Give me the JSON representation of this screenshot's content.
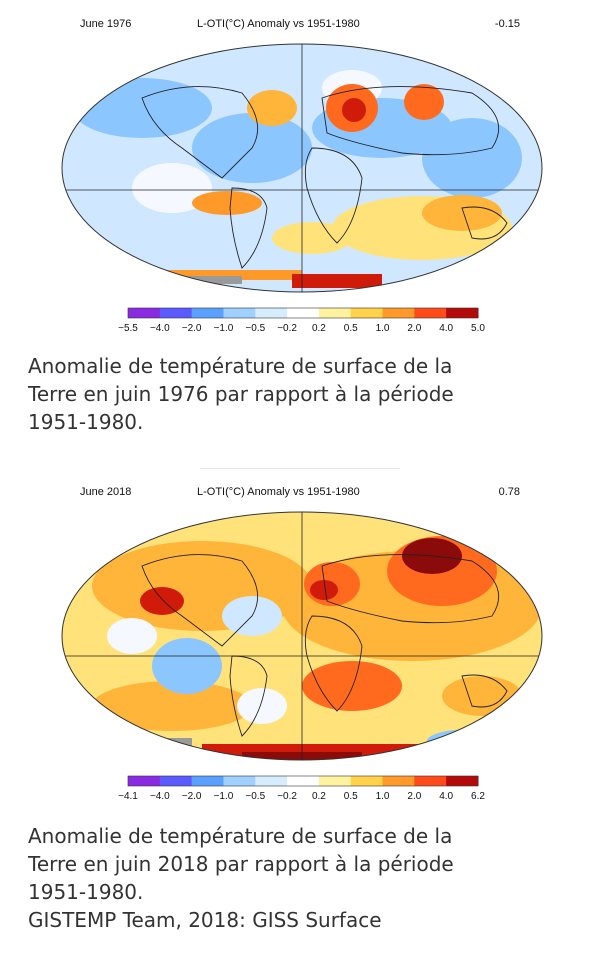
{
  "panels": [
    {
      "date": "June 1976",
      "title": "L-OTI(°C) Anomaly vs 1951-1980",
      "global_mean": "-0.15",
      "colorbar_ticks": [
        "−5.5",
        "−4.0",
        "−2.0",
        "−1.0",
        "−0.5",
        "−0.2",
        "0.2",
        "0.5",
        "1.0",
        "2.0",
        "4.0",
        "5.0"
      ],
      "caption": [
        "Anomalie de température de surface de la",
        "Terre en juin 1976 par rapport à la période",
        "1951-1980."
      ]
    },
    {
      "date": "June 2018",
      "title": "L-OTI(°C) Anomaly vs 1951-1980",
      "global_mean": "0.78",
      "colorbar_ticks": [
        "−4.1",
        "−4.0",
        "−2.0",
        "−1.0",
        "−0.5",
        "−0.2",
        "0.2",
        "0.5",
        "1.0",
        "2.0",
        "4.0",
        "6.2"
      ],
      "caption": [
        "Anomalie de température de surface de la",
        "Terre en juin 2018 par rapport à la période",
        "1951-1980.",
        "GISTEMP Team, 2018: GISS Surface"
      ]
    }
  ],
  "colorbar_colors": [
    "#8a2be2",
    "#5a5aff",
    "#5aa0ff",
    "#9fd0ff",
    "#d6ecff",
    "#ffffff",
    "#fff3a0",
    "#ffd24a",
    "#ff9a2a",
    "#ff4a1a",
    "#b40a0a"
  ],
  "colors": {
    "cold_deep": "#3a4fd6",
    "cold": "#8cc6ff",
    "cool": "#cfe8ff",
    "neutral": "#f5f9ff",
    "warm_light": "#ffe27a",
    "warm": "#ffb43a",
    "hot": "#ff6a1f",
    "very_hot": "#d01b0b",
    "extreme": "#8b0a0a",
    "missing": "#9a9a9a",
    "caption_text": "#333333"
  }
}
